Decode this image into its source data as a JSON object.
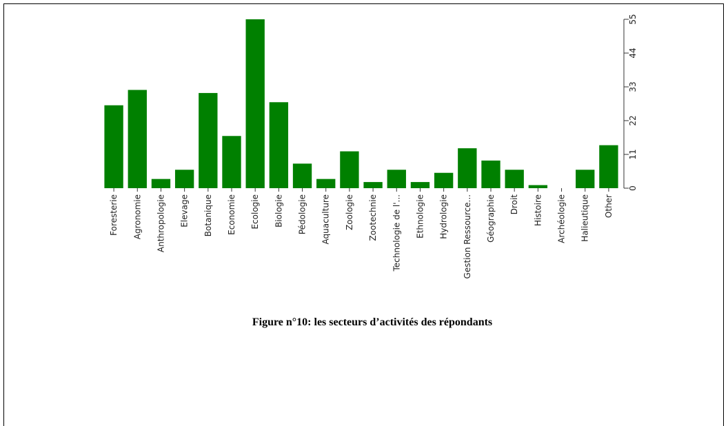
{
  "chart_data": {
    "type": "bar",
    "caption": "Figure n°10: les secteurs d’activités des répondants",
    "categories": [
      "Foresterie",
      "Agronomie",
      "Anthropologie",
      "Elevage",
      "Botanique",
      "Economie",
      "Ecologie",
      "Biologie",
      "Pédologie",
      "Aquaculture",
      "Zoologie",
      "Zootechnie",
      "Technologie de l'...",
      "Ethnologie",
      "Hydrologie",
      "Gestion Ressource...",
      "Géographie",
      "Droit",
      "Histoire",
      "Archéologie",
      "Halieutique",
      "Other"
    ],
    "values": [
      27,
      32,
      3,
      6,
      31,
      17,
      55,
      28,
      8,
      3,
      12,
      2,
      6,
      2,
      5,
      13,
      9,
      6,
      1,
      0,
      6,
      14
    ],
    "color": "#008000",
    "ylim": [
      0,
      55
    ],
    "yticks": [
      0,
      11,
      22,
      33,
      44,
      55
    ],
    "y_axis_side": "right"
  }
}
